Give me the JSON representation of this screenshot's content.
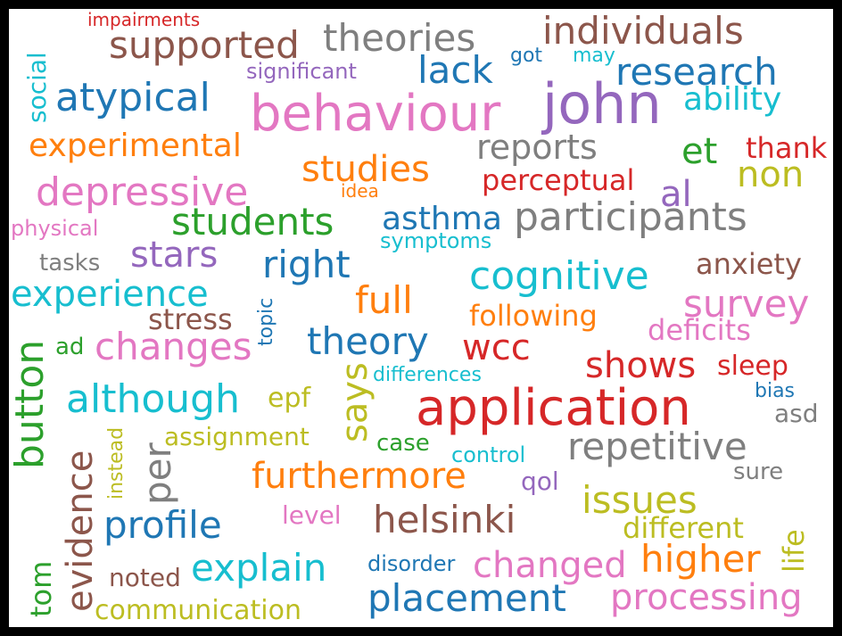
{
  "colors": {
    "blue": "#1f77b4",
    "orange": "#ff7f0e",
    "green": "#2ca02c",
    "red": "#d62728",
    "purple": "#9467bd",
    "brown": "#8c564b",
    "pink": "#e377c2",
    "gray": "#7f7f7f",
    "olive": "#bcbd22",
    "cyan": "#17becf"
  },
  "words": [
    {
      "text": "impairments",
      "color": "red"
    },
    {
      "text": "supported",
      "color": "brown"
    },
    {
      "text": "theories",
      "color": "gray"
    },
    {
      "text": "individuals",
      "color": "brown"
    },
    {
      "text": "social",
      "color": "cyan"
    },
    {
      "text": "significant",
      "color": "purple"
    },
    {
      "text": "got",
      "color": "blue"
    },
    {
      "text": "may",
      "color": "cyan"
    },
    {
      "text": "lack",
      "color": "blue"
    },
    {
      "text": "research",
      "color": "blue"
    },
    {
      "text": "atypical",
      "color": "blue"
    },
    {
      "text": "behaviour",
      "color": "pink"
    },
    {
      "text": "john",
      "color": "purple"
    },
    {
      "text": "ability",
      "color": "cyan"
    },
    {
      "text": "experimental",
      "color": "orange"
    },
    {
      "text": "reports",
      "color": "gray"
    },
    {
      "text": "et",
      "color": "green"
    },
    {
      "text": "thank",
      "color": "red"
    },
    {
      "text": "studies",
      "color": "orange"
    },
    {
      "text": "non",
      "color": "olive"
    },
    {
      "text": "perceptual",
      "color": "red"
    },
    {
      "text": "depressive",
      "color": "pink"
    },
    {
      "text": "idea",
      "color": "orange"
    },
    {
      "text": "al",
      "color": "purple"
    },
    {
      "text": "students",
      "color": "green"
    },
    {
      "text": "asthma",
      "color": "blue"
    },
    {
      "text": "participants",
      "color": "gray"
    },
    {
      "text": "physical",
      "color": "pink"
    },
    {
      "text": "symptoms",
      "color": "cyan"
    },
    {
      "text": "tasks",
      "color": "gray"
    },
    {
      "text": "stars",
      "color": "purple"
    },
    {
      "text": "right",
      "color": "blue"
    },
    {
      "text": "anxiety",
      "color": "brown"
    },
    {
      "text": "cognitive",
      "color": "cyan"
    },
    {
      "text": "experience",
      "color": "cyan"
    },
    {
      "text": "full",
      "color": "orange"
    },
    {
      "text": "topic",
      "color": "blue"
    },
    {
      "text": "survey",
      "color": "pink"
    },
    {
      "text": "stress",
      "color": "brown"
    },
    {
      "text": "following",
      "color": "orange"
    },
    {
      "text": "button",
      "color": "green"
    },
    {
      "text": "ad",
      "color": "green"
    },
    {
      "text": "changes",
      "color": "pink"
    },
    {
      "text": "theory",
      "color": "blue"
    },
    {
      "text": "wcc",
      "color": "red"
    },
    {
      "text": "deficits",
      "color": "pink"
    },
    {
      "text": "says",
      "color": "olive"
    },
    {
      "text": "differences",
      "color": "cyan"
    },
    {
      "text": "shows",
      "color": "red"
    },
    {
      "text": "sleep",
      "color": "red"
    },
    {
      "text": "although",
      "color": "cyan"
    },
    {
      "text": "epf",
      "color": "olive"
    },
    {
      "text": "bias",
      "color": "blue"
    },
    {
      "text": "application",
      "color": "red"
    },
    {
      "text": "asd",
      "color": "gray"
    },
    {
      "text": "evidence",
      "color": "brown"
    },
    {
      "text": "instead",
      "color": "olive"
    },
    {
      "text": "per",
      "color": "gray"
    },
    {
      "text": "assignment",
      "color": "olive"
    },
    {
      "text": "case",
      "color": "green"
    },
    {
      "text": "repetitive",
      "color": "gray"
    },
    {
      "text": "control",
      "color": "cyan"
    },
    {
      "text": "furthermore",
      "color": "orange"
    },
    {
      "text": "sure",
      "color": "gray"
    },
    {
      "text": "qol",
      "color": "purple"
    },
    {
      "text": "issues",
      "color": "olive"
    },
    {
      "text": "life",
      "color": "olive"
    },
    {
      "text": "profile",
      "color": "blue"
    },
    {
      "text": "level",
      "color": "pink"
    },
    {
      "text": "helsinki",
      "color": "brown"
    },
    {
      "text": "different",
      "color": "olive"
    },
    {
      "text": "tom",
      "color": "green"
    },
    {
      "text": "explain",
      "color": "cyan"
    },
    {
      "text": "disorder",
      "color": "blue"
    },
    {
      "text": "changed",
      "color": "pink"
    },
    {
      "text": "higher",
      "color": "orange"
    },
    {
      "text": "noted",
      "color": "brown"
    },
    {
      "text": "placement",
      "color": "blue"
    },
    {
      "text": "processing",
      "color": "pink"
    },
    {
      "text": "communication",
      "color": "olive"
    }
  ]
}
